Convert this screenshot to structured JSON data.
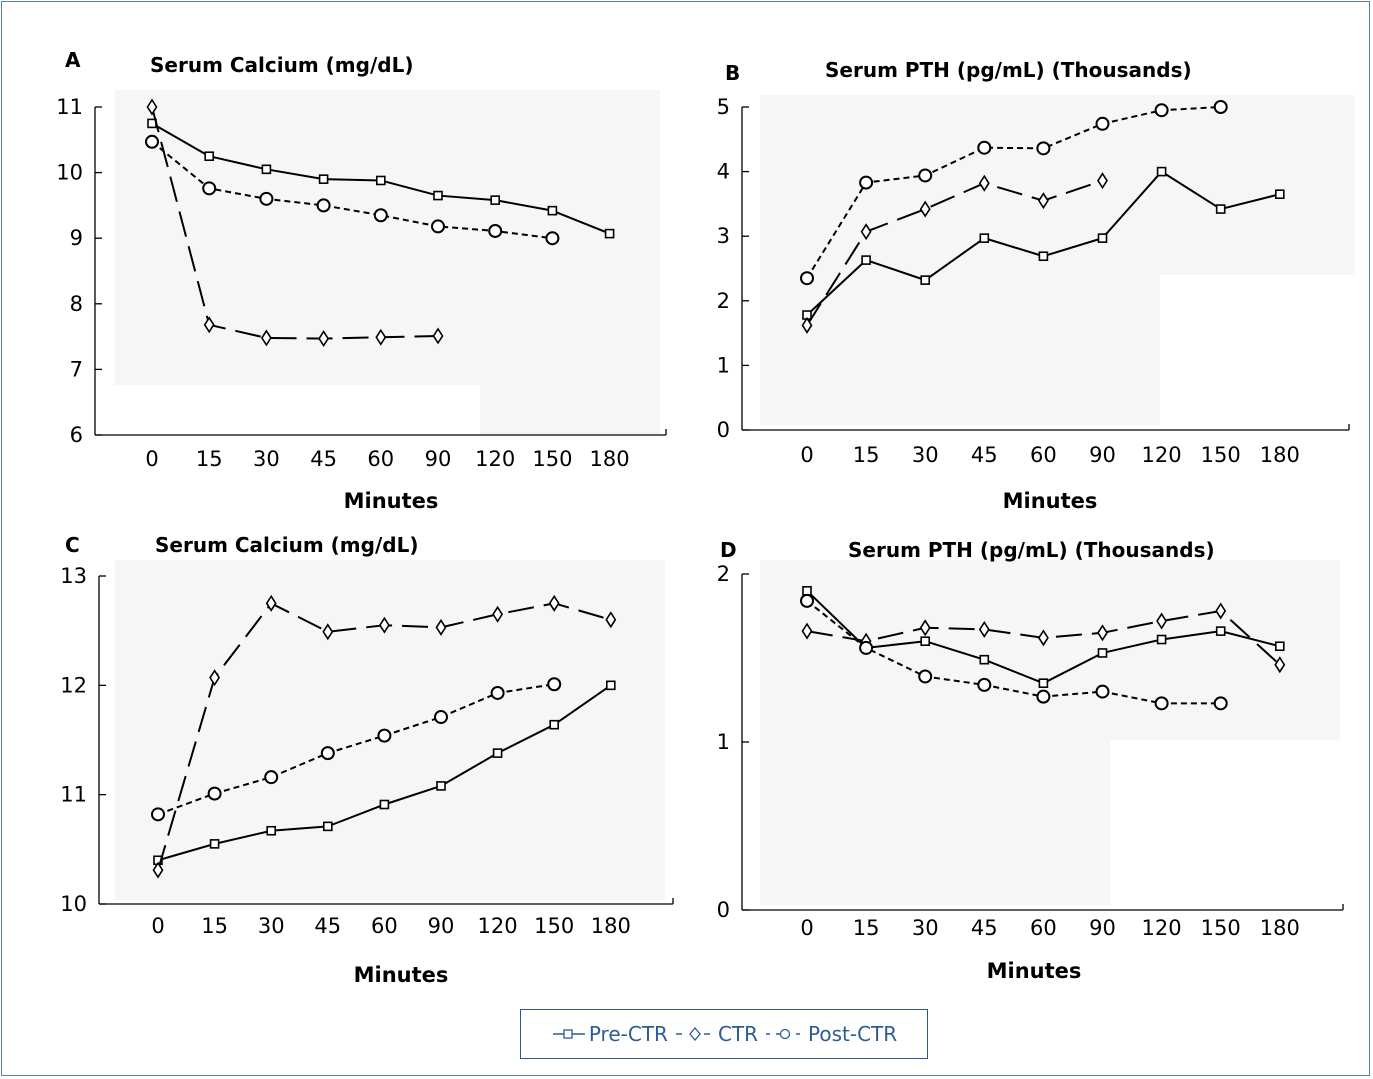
{
  "legend": {
    "items": [
      {
        "label": "Pre-CTR",
        "marker": "square",
        "dash": "solid"
      },
      {
        "label": "CTR",
        "marker": "diamond",
        "dash": "long-dash"
      },
      {
        "label": "Post-CTR",
        "marker": "circle",
        "dash": "short-dash"
      }
    ],
    "text_color": "#2d5c94"
  },
  "chart_data": [
    {
      "panel": "A",
      "type": "line",
      "title": "Serum Calcium (mg/dL)",
      "xlabel": "Minutes",
      "ylabel": "",
      "categories": [
        "0",
        "15",
        "30",
        "45",
        "60",
        "90",
        "120",
        "150",
        "180"
      ],
      "ylim": [
        6,
        11
      ],
      "yticks": [
        6,
        7,
        8,
        9,
        10,
        11
      ],
      "series": [
        {
          "name": "Pre-CTR",
          "marker": "square",
          "values": [
            10.75,
            10.25,
            10.05,
            9.9,
            9.88,
            9.65,
            9.58,
            9.42,
            9.07
          ]
        },
        {
          "name": "CTR",
          "marker": "diamond",
          "values": [
            11.0,
            7.68,
            7.48,
            7.47,
            7.49,
            7.51,
            null,
            null,
            null
          ]
        },
        {
          "name": "Post-CTR",
          "marker": "circle",
          "values": [
            10.47,
            9.76,
            9.6,
            9.5,
            9.35,
            9.18,
            9.11,
            9.0,
            null
          ]
        }
      ]
    },
    {
      "panel": "B",
      "type": "line",
      "title": "Serum PTH (pg/mL) (Thousands)",
      "xlabel": "Minutes",
      "ylabel": "",
      "categories": [
        "0",
        "15",
        "30",
        "45",
        "60",
        "90",
        "120",
        "150",
        "180"
      ],
      "ylim": [
        0,
        5
      ],
      "yticks": [
        0,
        1,
        2,
        3,
        4,
        5
      ],
      "series": [
        {
          "name": "Pre-CTR",
          "marker": "square",
          "values": [
            1.78,
            2.63,
            2.32,
            2.97,
            2.69,
            2.97,
            4.0,
            3.42,
            3.65
          ]
        },
        {
          "name": "CTR",
          "marker": "diamond",
          "values": [
            1.62,
            3.07,
            3.42,
            3.82,
            3.55,
            3.86,
            null,
            null,
            null
          ]
        },
        {
          "name": "Post-CTR",
          "marker": "circle",
          "values": [
            2.35,
            3.83,
            3.94,
            4.37,
            4.36,
            4.74,
            4.95,
            5.0,
            null
          ]
        }
      ]
    },
    {
      "panel": "C",
      "type": "line",
      "title": "Serum Calcium (mg/dL)",
      "xlabel": "Minutes",
      "ylabel": "",
      "categories": [
        "0",
        "15",
        "30",
        "45",
        "60",
        "90",
        "120",
        "150",
        "180"
      ],
      "ylim": [
        10,
        13
      ],
      "yticks": [
        10,
        11,
        12,
        13
      ],
      "series": [
        {
          "name": "Pre-CTR",
          "marker": "square",
          "values": [
            10.4,
            10.55,
            10.67,
            10.71,
            10.91,
            11.08,
            11.38,
            11.64,
            12.0
          ]
        },
        {
          "name": "CTR",
          "marker": "diamond",
          "values": [
            10.31,
            12.07,
            12.75,
            12.49,
            12.55,
            12.53,
            12.65,
            12.75,
            12.6
          ]
        },
        {
          "name": "Post-CTR",
          "marker": "circle",
          "values": [
            10.82,
            11.01,
            11.16,
            11.38,
            11.54,
            11.71,
            11.93,
            12.01,
            null
          ]
        }
      ]
    },
    {
      "panel": "D",
      "type": "line",
      "title": "Serum PTH (pg/mL) (Thousands)",
      "xlabel": "Minutes",
      "ylabel": "",
      "categories": [
        "0",
        "15",
        "30",
        "45",
        "60",
        "90",
        "120",
        "150",
        "180"
      ],
      "ylim": [
        0,
        2
      ],
      "yticks": [
        0,
        1,
        2
      ],
      "series": [
        {
          "name": "Pre-CTR",
          "marker": "square",
          "values": [
            1.9,
            1.56,
            1.6,
            1.49,
            1.35,
            1.53,
            1.61,
            1.66,
            1.57
          ]
        },
        {
          "name": "CTR",
          "marker": "diamond",
          "values": [
            1.66,
            1.6,
            1.68,
            1.67,
            1.62,
            1.65,
            1.72,
            1.78,
            1.46
          ]
        },
        {
          "name": "Post-CTR",
          "marker": "circle",
          "values": [
            1.84,
            1.56,
            1.39,
            1.34,
            1.27,
            1.3,
            1.23,
            1.23,
            null
          ]
        }
      ]
    }
  ]
}
